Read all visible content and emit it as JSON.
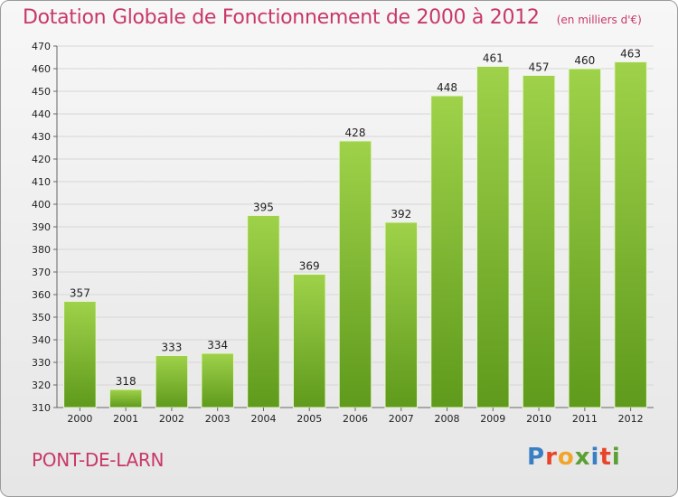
{
  "header": {
    "title": "Dotation Globale de Fonctionnement de 2000 à 2012",
    "unit": "(en milliers d'€)"
  },
  "footer": {
    "commune": "PONT-DE-LARN",
    "logo_text": "Proxiti",
    "logo_colors": [
      "#3a7fc4",
      "#e8442a",
      "#f2a52a",
      "#5aa032",
      "#3a7fc4",
      "#e8442a",
      "#5aa032"
    ]
  },
  "colors": {
    "bar_top": "#9fd24a",
    "bar_bottom": "#5f9a1c",
    "bar_edge": "#e8f4d0",
    "grid": "#d6d6d6",
    "axis": "#666666"
  },
  "chart_data": {
    "type": "bar",
    "title": "Dotation Globale de Fonctionnement de 2000 à 2012",
    "xlabel": "",
    "ylabel": "",
    "categories": [
      "2000",
      "2001",
      "2002",
      "2003",
      "2004",
      "2005",
      "2006",
      "2007",
      "2008",
      "2009",
      "2010",
      "2011",
      "2012"
    ],
    "values": [
      357,
      318,
      333,
      334,
      395,
      369,
      428,
      392,
      448,
      461,
      457,
      460,
      463
    ],
    "ylim": [
      310,
      470
    ],
    "ytick_step": 10,
    "grid": true,
    "data_labels": true
  }
}
